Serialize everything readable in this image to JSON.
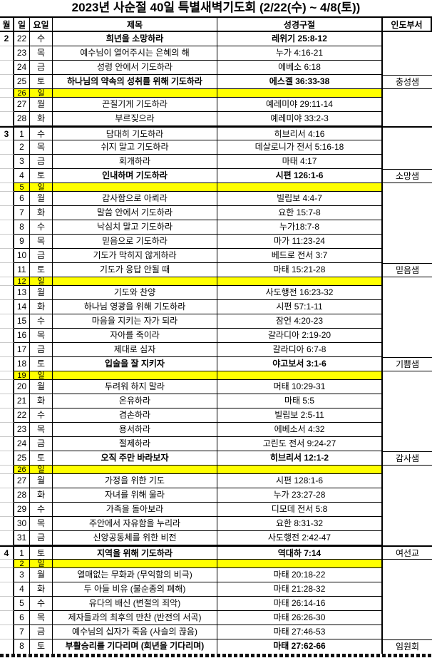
{
  "title": "2023년 사순절 40일 특별새벽기도회 (2/22(수) ~ 4/8(토))",
  "columns": {
    "month": "월",
    "day": "일",
    "weekday": "요일",
    "title": "제목",
    "verse": "성경구절",
    "department": "인도부서"
  },
  "colors": {
    "sunday_highlight": "#ffff00",
    "border": "#000000",
    "gridline": "#c9c9c9",
    "text": "#000000",
    "background": "#ffffff"
  },
  "rows": [
    {
      "month": "2",
      "day": "22",
      "weekday": "수",
      "title": "희년을 소망하라",
      "verse": "레위기 25:8-12",
      "department": "",
      "bold": true,
      "sunday": false,
      "month_start": false
    },
    {
      "month": "",
      "day": "23",
      "weekday": "목",
      "title": "예수님이 열어주시는 은혜의 해",
      "verse": "누가 4:16-21",
      "department": "",
      "bold": false,
      "sunday": false,
      "month_start": false
    },
    {
      "month": "",
      "day": "24",
      "weekday": "금",
      "title": "성령 안에서 기도하라",
      "verse": "에베소 6:18",
      "department": "",
      "bold": false,
      "sunday": false,
      "month_start": false
    },
    {
      "month": "",
      "day": "25",
      "weekday": "토",
      "title": "하나님의 약속의 성취를 위해 기도하라",
      "verse": "에스겔 36:33-38",
      "department": "충성샘",
      "bold": true,
      "sunday": false,
      "month_start": false
    },
    {
      "month": "",
      "day": "26",
      "weekday": "일",
      "title": "",
      "verse": "",
      "department": "",
      "bold": false,
      "sunday": true,
      "month_start": false
    },
    {
      "month": "",
      "day": "27",
      "weekday": "월",
      "title": "끈질기게 기도하라",
      "verse": "예레미야 29:11-14",
      "department": "",
      "bold": false,
      "sunday": false,
      "month_start": false
    },
    {
      "month": "",
      "day": "28",
      "weekday": "화",
      "title": "부르짖으라",
      "verse": "예레미야 33:2-3",
      "department": "",
      "bold": false,
      "sunday": false,
      "month_start": false
    },
    {
      "month": "3",
      "day": "1",
      "weekday": "수",
      "title": "담대히 기도하라",
      "verse": "히브리서 4:16",
      "department": "",
      "bold": false,
      "sunday": false,
      "month_start": true
    },
    {
      "month": "",
      "day": "2",
      "weekday": "목",
      "title": "쉬지 말고 기도하라",
      "verse": "데살로니가 전서 5:16-18",
      "department": "",
      "bold": false,
      "sunday": false,
      "month_start": false
    },
    {
      "month": "",
      "day": "3",
      "weekday": "금",
      "title": "회개하라",
      "verse": "마태 4:17",
      "department": "",
      "bold": false,
      "sunday": false,
      "month_start": false
    },
    {
      "month": "",
      "day": "4",
      "weekday": "토",
      "title": "인내하며 기도하라",
      "verse": "시편 126:1-6",
      "department": "소망샘",
      "bold": true,
      "sunday": false,
      "month_start": false
    },
    {
      "month": "",
      "day": "5",
      "weekday": "일",
      "title": "",
      "verse": "",
      "department": "",
      "bold": false,
      "sunday": true,
      "month_start": false
    },
    {
      "month": "",
      "day": "6",
      "weekday": "월",
      "title": "감사함으로 아뢰라",
      "verse": "빌립보 4:4-7",
      "department": "",
      "bold": false,
      "sunday": false,
      "month_start": false
    },
    {
      "month": "",
      "day": "7",
      "weekday": "화",
      "title": "말씀 안에서 기도하라",
      "verse": "요한 15:7-8",
      "department": "",
      "bold": false,
      "sunday": false,
      "month_start": false
    },
    {
      "month": "",
      "day": "8",
      "weekday": "수",
      "title": "낙심치 말고 기도하라",
      "verse": "누가18:7-8",
      "department": "",
      "bold": false,
      "sunday": false,
      "month_start": false
    },
    {
      "month": "",
      "day": "9",
      "weekday": "목",
      "title": "믿음으로 기도하라",
      "verse": "마가 11:23-24",
      "department": "",
      "bold": false,
      "sunday": false,
      "month_start": false
    },
    {
      "month": "",
      "day": "10",
      "weekday": "금",
      "title": "기도가 막히지 않게하라",
      "verse": "베드로 전서 3:7",
      "department": "",
      "bold": false,
      "sunday": false,
      "month_start": false
    },
    {
      "month": "",
      "day": "11",
      "weekday": "토",
      "title": "기도가 응답 안될 때",
      "verse": "마태 15:21-28",
      "department": "믿음샘",
      "bold": false,
      "sunday": false,
      "month_start": false
    },
    {
      "month": "",
      "day": "12",
      "weekday": "일",
      "title": "",
      "verse": "",
      "department": "",
      "bold": false,
      "sunday": true,
      "month_start": false
    },
    {
      "month": "",
      "day": "13",
      "weekday": "월",
      "title": "기도와 찬양",
      "verse": "사도행전 16:23-32",
      "department": "",
      "bold": false,
      "sunday": false,
      "month_start": false
    },
    {
      "month": "",
      "day": "14",
      "weekday": "화",
      "title": "하나님 영광을 위해 기도하라",
      "verse": "시편 57:1-11",
      "department": "",
      "bold": false,
      "sunday": false,
      "month_start": false
    },
    {
      "month": "",
      "day": "15",
      "weekday": "수",
      "title": "마음을 지키는 자가 되라",
      "verse": "잠언 4:20-23",
      "department": "",
      "bold": false,
      "sunday": false,
      "month_start": false
    },
    {
      "month": "",
      "day": "16",
      "weekday": "목",
      "title": "자아를 죽이라",
      "verse": "갈라디아 2:19-20",
      "department": "",
      "bold": false,
      "sunday": false,
      "month_start": false
    },
    {
      "month": "",
      "day": "17",
      "weekday": "금",
      "title": "제대로 심자",
      "verse": "갈라디아 6:7-8",
      "department": "",
      "bold": false,
      "sunday": false,
      "month_start": false
    },
    {
      "month": "",
      "day": "18",
      "weekday": "토",
      "title": "입술을 잘 지키자",
      "verse": "야고보서 3:1-6",
      "department": "기쁨샘",
      "bold": true,
      "sunday": false,
      "month_start": false
    },
    {
      "month": "",
      "day": "19",
      "weekday": "일",
      "title": "",
      "verse": "",
      "department": "",
      "bold": false,
      "sunday": true,
      "month_start": false
    },
    {
      "month": "",
      "day": "20",
      "weekday": "월",
      "title": "두려워 하지 말라",
      "verse": "머태 10:29-31",
      "department": "",
      "bold": false,
      "sunday": false,
      "month_start": false
    },
    {
      "month": "",
      "day": "21",
      "weekday": "화",
      "title": "온유하라",
      "verse": "마태 5:5",
      "department": "",
      "bold": false,
      "sunday": false,
      "month_start": false
    },
    {
      "month": "",
      "day": "22",
      "weekday": "수",
      "title": "겸손하라",
      "verse": "빌립보 2:5-11",
      "department": "",
      "bold": false,
      "sunday": false,
      "month_start": false
    },
    {
      "month": "",
      "day": "23",
      "weekday": "목",
      "title": "용서하라",
      "verse": "에베소서 4:32",
      "department": "",
      "bold": false,
      "sunday": false,
      "month_start": false
    },
    {
      "month": "",
      "day": "24",
      "weekday": "금",
      "title": "절제하라",
      "verse": "고린도 전서 9:24-27",
      "department": "",
      "bold": false,
      "sunday": false,
      "month_start": false
    },
    {
      "month": "",
      "day": "25",
      "weekday": "토",
      "title": "오직 주만 바라보자",
      "verse": "히브리서 12:1-2",
      "department": "감사샘",
      "bold": true,
      "sunday": false,
      "month_start": false
    },
    {
      "month": "",
      "day": "26",
      "weekday": "일",
      "title": "",
      "verse": "",
      "department": "",
      "bold": false,
      "sunday": true,
      "month_start": false
    },
    {
      "month": "",
      "day": "27",
      "weekday": "월",
      "title": "가정을 위한 기도",
      "verse": "시편 128:1-6",
      "department": "",
      "bold": false,
      "sunday": false,
      "month_start": false
    },
    {
      "month": "",
      "day": "28",
      "weekday": "화",
      "title": "자녀를 위해 울라",
      "verse": "누가 23:27-28",
      "department": "",
      "bold": false,
      "sunday": false,
      "month_start": false
    },
    {
      "month": "",
      "day": "29",
      "weekday": "수",
      "title": "가족을 돌아보라",
      "verse": "디모데 전서 5:8",
      "department": "",
      "bold": false,
      "sunday": false,
      "month_start": false
    },
    {
      "month": "",
      "day": "30",
      "weekday": "목",
      "title": "주안에서 자유함을 누리라",
      "verse": "요한 8:31-32",
      "department": "",
      "bold": false,
      "sunday": false,
      "month_start": false
    },
    {
      "month": "",
      "day": "31",
      "weekday": "금",
      "title": "신앙공동체를 위한 비전",
      "verse": "사도행전 2:42-47",
      "department": "",
      "bold": false,
      "sunday": false,
      "month_start": false
    },
    {
      "month": "4",
      "day": "1",
      "weekday": "토",
      "title": "지역을 위해 기도하라",
      "verse": "역대하 7:14",
      "department": "여선교",
      "bold": true,
      "sunday": false,
      "month_start": true
    },
    {
      "month": "",
      "day": "2",
      "weekday": "일",
      "title": "",
      "verse": "",
      "department": "",
      "bold": false,
      "sunday": true,
      "month_start": false
    },
    {
      "month": "",
      "day": "3",
      "weekday": "월",
      "title": "열매없는 무화과 (무익함의 비극)",
      "verse": "마태 20:18-22",
      "department": "",
      "bold": false,
      "sunday": false,
      "month_start": false
    },
    {
      "month": "",
      "day": "4",
      "weekday": "화",
      "title": "두 아들 비유 (불순종의 폐해)",
      "verse": "마태 21:28-32",
      "department": "",
      "bold": false,
      "sunday": false,
      "month_start": false
    },
    {
      "month": "",
      "day": "5",
      "weekday": "수",
      "title": "유다의 배신 (변절의 죄악)",
      "verse": "마태 26:14-16",
      "department": "",
      "bold": false,
      "sunday": false,
      "month_start": false
    },
    {
      "month": "",
      "day": "6",
      "weekday": "목",
      "title": "제자들과의 최후의 만찬 (반전의 서곡)",
      "verse": "마태 26:26-30",
      "department": "",
      "bold": false,
      "sunday": false,
      "month_start": false
    },
    {
      "month": "",
      "day": "7",
      "weekday": "금",
      "title": "예수님의 십자가 죽음 (사슬의 끊음)",
      "verse": "마태 27:46-53",
      "department": "",
      "bold": false,
      "sunday": false,
      "month_start": false
    },
    {
      "month": "",
      "day": "8",
      "weekday": "토",
      "title": "부활승리를 기다리며 (희년을 기다리며)",
      "verse": "마태 27:62-66",
      "department": "임원회",
      "bold": true,
      "sunday": false,
      "month_start": false
    }
  ]
}
